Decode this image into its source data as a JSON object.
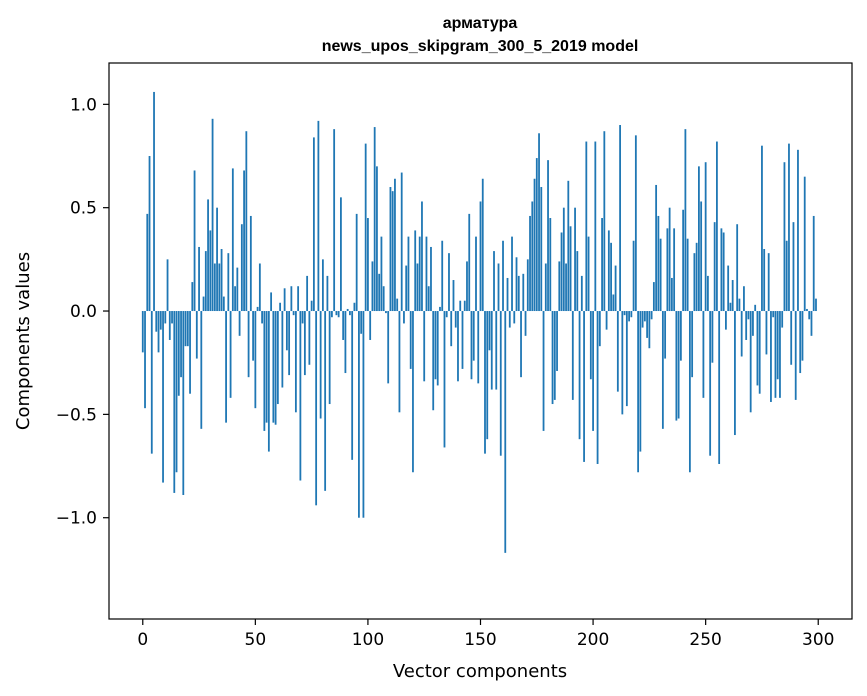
{
  "chart_data": {
    "type": "bar",
    "title_line1": "арматура",
    "title_line2": "news_upos_skipgram_300_5_2019 model",
    "xlabel": "Vector components",
    "ylabel": "Components values",
    "xlim": [
      -15,
      315
    ],
    "ylim": [
      -1.49,
      1.2
    ],
    "xticks": [
      0,
      50,
      100,
      150,
      200,
      250,
      300
    ],
    "xtick_labels": [
      "0",
      "50",
      "100",
      "150",
      "200",
      "250",
      "300"
    ],
    "yticks": [
      1.0,
      0.5,
      0.0,
      -0.5,
      -1.0
    ],
    "ytick_labels": [
      "1.0",
      "0.5",
      "0.0",
      "−0.5",
      "−1.0"
    ],
    "bar_color": "#1f77b4",
    "values": [
      -0.2,
      -0.47,
      0.47,
      0.75,
      -0.69,
      1.06,
      -0.1,
      -0.2,
      -0.09,
      -0.83,
      -0.06,
      0.25,
      -0.14,
      -0.06,
      -0.88,
      -0.78,
      -0.41,
      -0.32,
      -0.89,
      -0.17,
      -0.17,
      -0.4,
      0.14,
      0.68,
      -0.23,
      0.31,
      -0.57,
      0.07,
      0.29,
      0.54,
      0.39,
      0.93,
      0.23,
      0.5,
      0.23,
      0.3,
      0.07,
      -0.54,
      0.28,
      -0.42,
      0.69,
      0.12,
      0.21,
      -0.12,
      0.42,
      0.68,
      0.87,
      -0.32,
      0.46,
      -0.24,
      -0.47,
      0.02,
      0.23,
      -0.06,
      -0.58,
      -0.54,
      -0.68,
      0.09,
      -0.54,
      -0.55,
      -0.45,
      0.04,
      -0.37,
      0.11,
      -0.19,
      -0.31,
      0.12,
      -0.02,
      -0.49,
      0.12,
      -0.82,
      -0.06,
      -0.31,
      0.17,
      -0.26,
      0.05,
      0.84,
      -0.94,
      0.92,
      -0.52,
      0.25,
      -0.87,
      0.17,
      -0.45,
      -0.03,
      0.88,
      -0.02,
      -0.03,
      0.55,
      -0.14,
      -0.3,
      0.01,
      -0.02,
      -0.72,
      0.04,
      0.47,
      -1.0,
      -0.11,
      -1.0,
      0.81,
      0.45,
      -0.14,
      0.24,
      0.89,
      0.7,
      0.18,
      0.36,
      0.12,
      -0.01,
      -0.35,
      0.6,
      0.58,
      0.64,
      0.06,
      -0.49,
      0.67,
      -0.06,
      0.22,
      0.36,
      -0.28,
      -0.78,
      0.39,
      0.23,
      0.36,
      0.53,
      -0.34,
      0.36,
      0.12,
      0.31,
      -0.48,
      -0.33,
      -0.36,
      0.02,
      0.34,
      -0.66,
      -0.03,
      0.28,
      -0.17,
      0.15,
      -0.08,
      -0.34,
      0.05,
      -0.28,
      0.05,
      0.24,
      0.47,
      -0.33,
      -0.24,
      0.36,
      -0.35,
      0.53,
      0.64,
      -0.69,
      -0.62,
      -0.19,
      -0.38,
      0.29,
      -0.38,
      0.23,
      -0.7,
      0.34,
      -1.17,
      0.16,
      -0.08,
      0.36,
      -0.06,
      0.26,
      0.17,
      -0.32,
      0.18,
      -0.12,
      0.25,
      0.46,
      0.53,
      0.64,
      0.74,
      0.86,
      0.6,
      -0.58,
      0.23,
      0.73,
      0.45,
      -0.45,
      -0.43,
      -0.29,
      0.24,
      0.38,
      0.5,
      0.23,
      0.63,
      0.41,
      -0.43,
      0.5,
      0.29,
      -0.62,
      0.17,
      -0.73,
      0.82,
      0.36,
      -0.33,
      -0.58,
      0.82,
      -0.74,
      -0.17,
      0.45,
      0.87,
      -0.09,
      0.39,
      0.33,
      0.08,
      0.22,
      -0.39,
      0.9,
      -0.5,
      -0.02,
      -0.46,
      -0.05,
      -0.03,
      0.34,
      0.85,
      -0.78,
      -0.68,
      -0.08,
      -0.05,
      -0.13,
      -0.18,
      -0.04,
      0.14,
      0.61,
      0.46,
      0.35,
      -0.57,
      -0.23,
      0.4,
      0.5,
      0.16,
      0.4,
      -0.53,
      -0.52,
      -0.24,
      0.49,
      0.88,
      0.35,
      -0.78,
      -0.32,
      0.28,
      0.33,
      0.7,
      0.53,
      -0.42,
      0.72,
      0.17,
      -0.7,
      -0.25,
      0.43,
      0.82,
      -0.74,
      0.4,
      0.38,
      -0.09,
      0.22,
      0.04,
      0.15,
      -0.6,
      0.42,
      0.06,
      -0.22,
      0.12,
      -0.14,
      -0.04,
      -0.49,
      -0.12,
      0.03,
      -0.36,
      -0.4,
      0.8,
      0.3,
      -0.21,
      0.28,
      -0.44,
      -0.03,
      -0.42,
      -0.33,
      -0.42,
      -0.08,
      0.72,
      0.34,
      0.81,
      -0.26,
      0.43,
      -0.43,
      0.78,
      -0.3,
      -0.24,
      0.65,
      0.01,
      -0.04,
      -0.12,
      0.46,
      0.06
    ]
  }
}
